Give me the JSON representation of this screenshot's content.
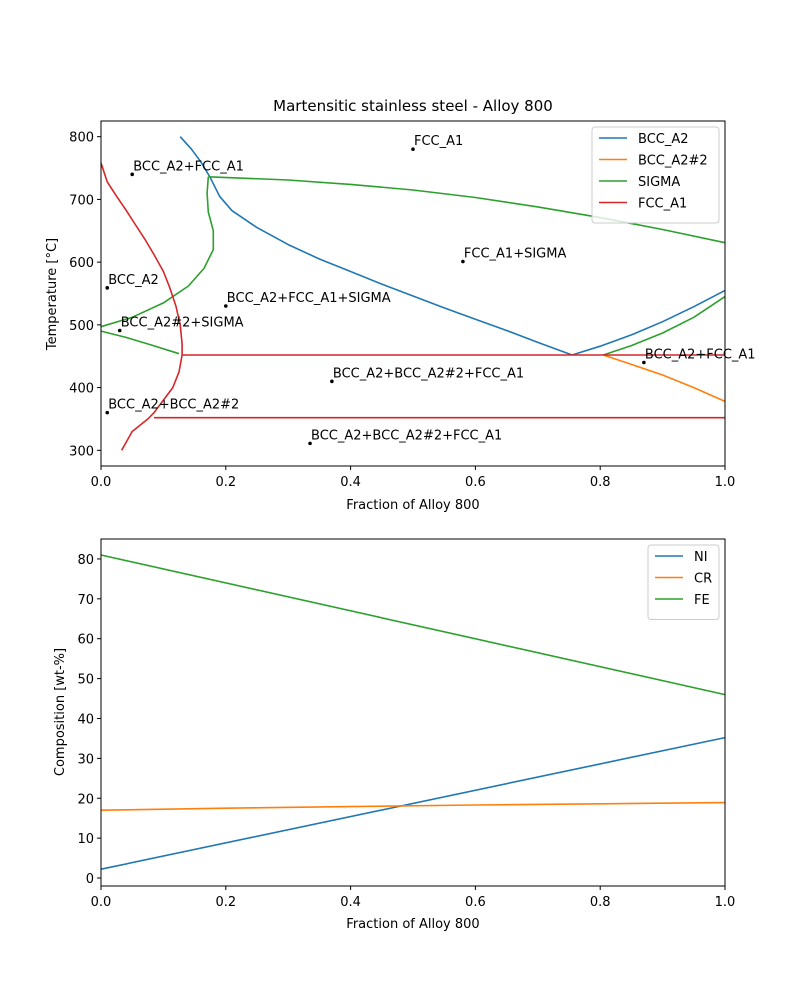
{
  "chart_data": [
    {
      "type": "line",
      "title": "Martensitic stainless steel - Alloy 800",
      "xlabel": "Fraction of Alloy 800",
      "ylabel": "Temperature [°C]",
      "xlim": [
        0,
        1
      ],
      "ylim": [
        275,
        825
      ],
      "xticks": [
        "0.0",
        "0.2",
        "0.4",
        "0.6",
        "0.8",
        "1.0"
      ],
      "xtick_values": [
        0,
        0.2,
        0.4,
        0.6,
        0.8,
        1.0
      ],
      "yticks": [
        "300",
        "400",
        "500",
        "600",
        "700",
        "800"
      ],
      "ytick_values": [
        300,
        400,
        500,
        600,
        700,
        800
      ],
      "grid": false,
      "legend": "top-right",
      "series": [
        {
          "name": "BCC_A2",
          "color": "#1f77b4",
          "segments": [
            [
              [
                0.127,
                800
              ],
              [
                0.145,
                780
              ],
              [
                0.16,
                760
              ],
              [
                0.175,
                735
              ],
              [
                0.19,
                705
              ],
              [
                0.21,
                682
              ],
              [
                0.25,
                655
              ],
              [
                0.3,
                628
              ],
              [
                0.35,
                605
              ],
              [
                0.4,
                585
              ],
              [
                0.45,
                565
              ],
              [
                0.5,
                546
              ],
              [
                0.55,
                527
              ],
              [
                0.6,
                509
              ],
              [
                0.65,
                491
              ],
              [
                0.7,
                472
              ],
              [
                0.755,
                452
              ]
            ],
            [
              [
                0.755,
                452
              ],
              [
                0.8,
                466
              ],
              [
                0.85,
                484
              ],
              [
                0.9,
                505
              ],
              [
                0.95,
                529
              ],
              [
                1.0,
                555
              ]
            ]
          ]
        },
        {
          "name": "BCC_A2#2",
          "color": "#ff7f0e",
          "segments": [
            [
              [
                0.805,
                452
              ],
              [
                0.85,
                437
              ],
              [
                0.9,
                420
              ],
              [
                0.95,
                400
              ],
              [
                1.0,
                378
              ]
            ]
          ]
        },
        {
          "name": "SIGMA",
          "color": "#2ca02c",
          "segments": [
            [
              [
                0.0,
                497
              ],
              [
                0.05,
                512
              ],
              [
                0.1,
                535
              ],
              [
                0.14,
                562
              ],
              [
                0.165,
                590
              ],
              [
                0.18,
                620
              ],
              [
                0.18,
                650
              ],
              [
                0.172,
                680
              ],
              [
                0.17,
                710
              ],
              [
                0.172,
                736
              ]
            ],
            [
              [
                0.172,
                736
              ],
              [
                0.3,
                731
              ],
              [
                0.4,
                724
              ],
              [
                0.5,
                715
              ],
              [
                0.6,
                703
              ],
              [
                0.7,
                688
              ],
              [
                0.8,
                671
              ],
              [
                0.9,
                652
              ],
              [
                1.0,
                631
              ]
            ],
            [
              [
                0.0,
                490
              ],
              [
                0.04,
                480
              ],
              [
                0.08,
                468
              ],
              [
                0.125,
                454
              ]
            ],
            [
              [
                0.805,
                452
              ],
              [
                0.85,
                467
              ],
              [
                0.9,
                487
              ],
              [
                0.95,
                512
              ],
              [
                1.0,
                545
              ]
            ]
          ]
        },
        {
          "name": "FCC_A1",
          "color": "#d62728",
          "segments": [
            [
              [
                0.0,
                758
              ],
              [
                0.01,
                728
              ],
              [
                0.025,
                705
              ],
              [
                0.04,
                683
              ],
              [
                0.055,
                660
              ],
              [
                0.07,
                637
              ],
              [
                0.085,
                612
              ],
              [
                0.1,
                585
              ],
              [
                0.11,
                560
              ],
              [
                0.12,
                530
              ],
              [
                0.127,
                500
              ],
              [
                0.13,
                470
              ],
              [
                0.13,
                452
              ],
              [
                0.125,
                425
              ],
              [
                0.115,
                400
              ],
              [
                0.1,
                380
              ],
              [
                0.085,
                360
              ],
              [
                0.075,
                350
              ],
              [
                0.05,
                330
              ],
              [
                0.033,
                300
              ]
            ],
            [
              [
                0.13,
                452
              ],
              [
                1.0,
                452
              ]
            ],
            [
              [
                0.085,
                352
              ],
              [
                1.0,
                352
              ]
            ]
          ]
        }
      ],
      "annotations": [
        {
          "text": "FCC_A1",
          "x": 0.5,
          "y": 780
        },
        {
          "text": "BCC_A2+FCC_A1",
          "x": 0.05,
          "y": 740
        },
        {
          "text": "FCC_A1+SIGMA",
          "x": 0.58,
          "y": 601
        },
        {
          "text": "BCC_A2",
          "x": 0.01,
          "y": 559
        },
        {
          "text": "BCC_A2+FCC_A1+SIGMA",
          "x": 0.2,
          "y": 530
        },
        {
          "text": "BCC_A2#2+SIGMA",
          "x": 0.03,
          "y": 491
        },
        {
          "text": "BCC_A2+FCC_A1",
          "x": 0.87,
          "y": 440
        },
        {
          "text": "BCC_A2+BCC_A2#2+FCC_A1",
          "x": 0.37,
          "y": 410
        },
        {
          "text": "BCC_A2+BCC_A2#2",
          "x": 0.01,
          "y": 360
        },
        {
          "text": "BCC_A2+BCC_A2#2+FCC_A1",
          "x": 0.335,
          "y": 311
        }
      ]
    },
    {
      "type": "line",
      "title": "",
      "xlabel": "Fraction of Alloy 800",
      "ylabel": "Composition [wt-%]",
      "xlim": [
        0,
        1
      ],
      "ylim": [
        -2,
        85
      ],
      "xticks": [
        "0.0",
        "0.2",
        "0.4",
        "0.6",
        "0.8",
        "1.0"
      ],
      "xtick_values": [
        0,
        0.2,
        0.4,
        0.6,
        0.8,
        1.0
      ],
      "yticks": [
        "0",
        "10",
        "20",
        "30",
        "40",
        "50",
        "60",
        "70",
        "80"
      ],
      "ytick_values": [
        0,
        10,
        20,
        30,
        40,
        50,
        60,
        70,
        80
      ],
      "grid": false,
      "legend": "top-right",
      "series": [
        {
          "name": "NI",
          "color": "#1f77b4",
          "segments": [
            [
              [
                0,
                2.2
              ],
              [
                1.0,
                35.2
              ]
            ]
          ]
        },
        {
          "name": "CR",
          "color": "#ff7f0e",
          "segments": [
            [
              [
                0,
                17.0
              ],
              [
                0.2,
                17.5
              ],
              [
                0.4,
                17.9
              ],
              [
                0.6,
                18.3
              ],
              [
                0.8,
                18.6
              ],
              [
                1.0,
                18.9
              ]
            ]
          ]
        },
        {
          "name": "FE",
          "color": "#2ca02c",
          "segments": [
            [
              [
                0,
                81.0
              ],
              [
                1.0,
                46.0
              ]
            ]
          ]
        }
      ]
    }
  ]
}
